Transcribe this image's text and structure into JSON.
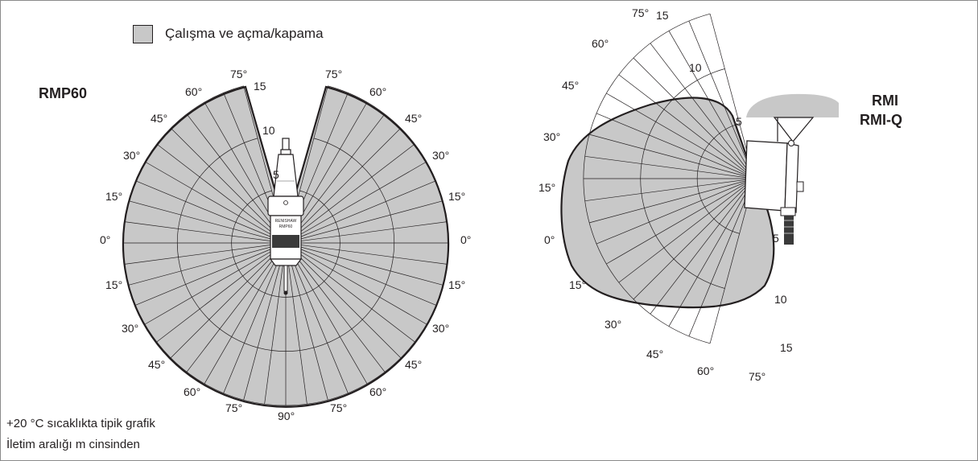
{
  "legend": {
    "swatch_color": "#c8c8c8",
    "label": "Çalışma ve açma/kapama"
  },
  "notes": {
    "line1": "+20 °C sıcaklıkta tipik grafik",
    "line2": "İletim aralığı m cinsinden"
  },
  "left_diagram": {
    "title": "RMP60",
    "product_text_line1": "RENISHAW",
    "product_text_line2": "RMP60",
    "range_rings": [
      5,
      10,
      15
    ],
    "ring_labels": [
      "5",
      "10",
      "15"
    ],
    "angle_labels": {
      "left_upper": [
        "75°",
        "60°",
        "45°",
        "30°",
        "15°"
      ],
      "right_upper": [
        "75°",
        "60°",
        "45°",
        "30°",
        "15°"
      ],
      "horizontal": [
        "0°",
        "0°"
      ],
      "left_lower": [
        "15°",
        "30°",
        "45°",
        "60°",
        "75°"
      ],
      "right_lower": [
        "15°",
        "30°",
        "45°",
        "60°",
        "75°"
      ],
      "bottom": "90°"
    }
  },
  "right_diagram": {
    "title_line1": "RMI",
    "title_line2": "RMI-Q",
    "range_rings": [
      5,
      10,
      15
    ],
    "upper_ring_labels": [
      "15",
      "10",
      "5"
    ],
    "lower_ring_labels": [
      "5",
      "10",
      "15"
    ],
    "upper_angle_labels": [
      "75°",
      "60°",
      "45°",
      "30°",
      "15°",
      "0°"
    ],
    "lower_angle_labels": [
      "15°",
      "30°",
      "45°",
      "60°",
      "75°"
    ]
  }
}
